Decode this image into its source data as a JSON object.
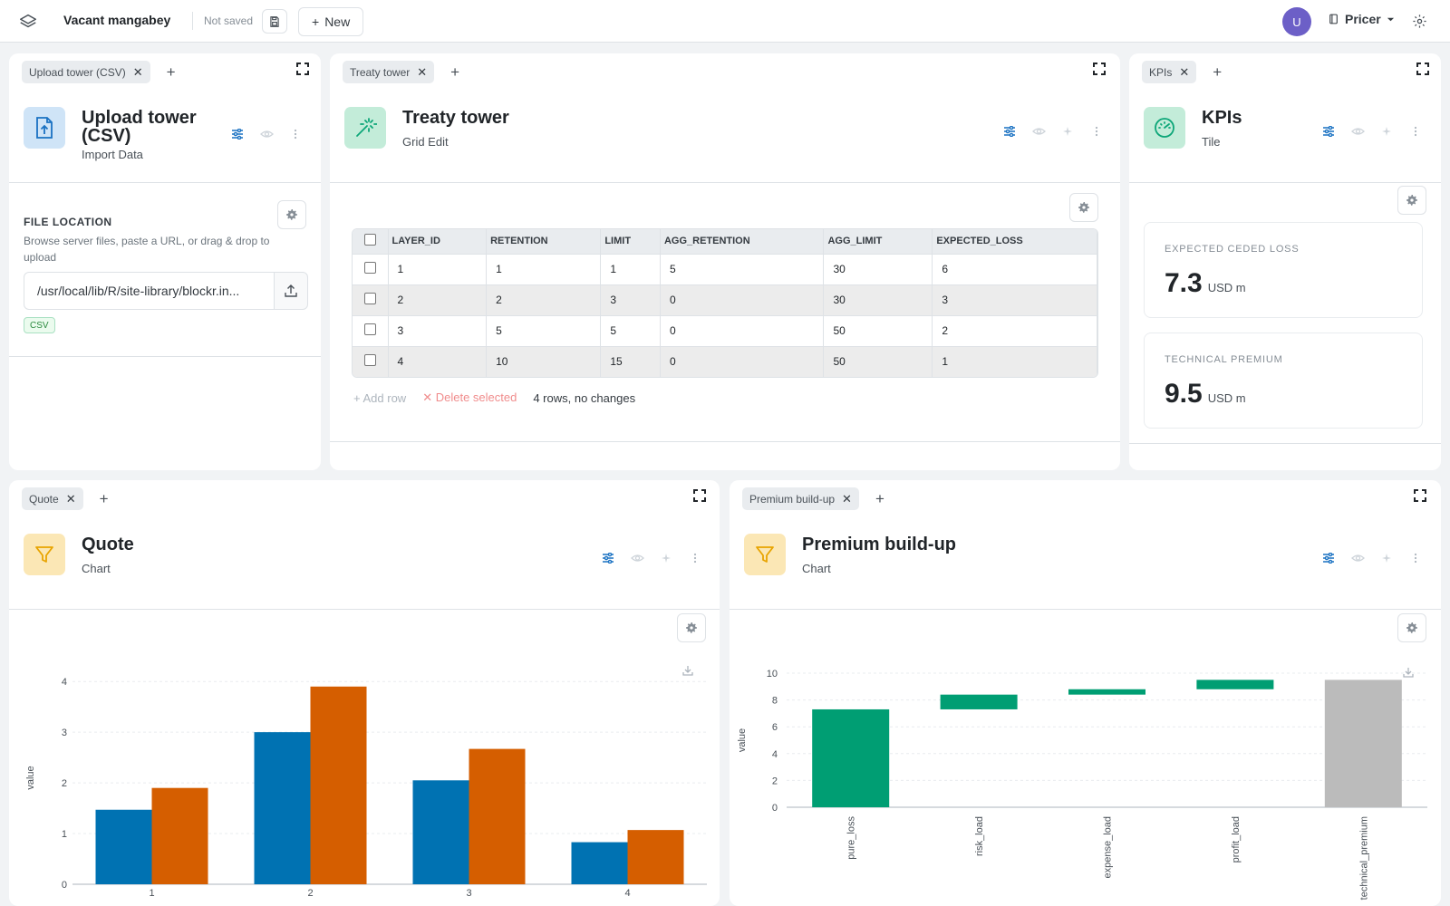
{
  "header": {
    "title": "Vacant mangabey",
    "status": "Not saved",
    "new_label": "New",
    "avatar_initial": "U",
    "workspace": "Pricer"
  },
  "upload_panel": {
    "tab": "Upload tower (CSV)",
    "title": "Upload tower (CSV)",
    "subtitle": "Import Data",
    "file_location_label": "FILE LOCATION",
    "file_location_desc": "Browse server files, paste a URL, or drag & drop to upload",
    "path_value": "/usr/local/lib/R/site-library/blockr.in...",
    "badge": "CSV"
  },
  "treaty_panel": {
    "tab": "Treaty tower",
    "title": "Treaty tower",
    "subtitle": "Grid Edit",
    "columns": [
      "LAYER_ID",
      "RETENTION",
      "LIMIT",
      "AGG_RETENTION",
      "AGG_LIMIT",
      "EXPECTED_LOSS"
    ],
    "rows": [
      [
        "1",
        "1",
        "1",
        "5",
        "30",
        "6"
      ],
      [
        "2",
        "2",
        "3",
        "0",
        "30",
        "3"
      ],
      [
        "3",
        "5",
        "5",
        "0",
        "50",
        "2"
      ],
      [
        "4",
        "10",
        "15",
        "0",
        "50",
        "1"
      ]
    ],
    "add_row": "Add row",
    "delete_selected": "Delete selected",
    "row_status": "4 rows, no changes"
  },
  "kpi_panel": {
    "tab": "KPIs",
    "title": "KPIs",
    "subtitle": "Tile",
    "tiles": [
      {
        "label": "EXPECTED CEDED LOSS",
        "value": "7.3",
        "unit": "USD m"
      },
      {
        "label": "TECHNICAL PREMIUM",
        "value": "9.5",
        "unit": "USD m"
      }
    ]
  },
  "quote_panel": {
    "tab": "Quote",
    "title": "Quote",
    "subtitle": "Chart"
  },
  "premium_panel": {
    "tab": "Premium build-up",
    "title": "Premium build-up",
    "subtitle": "Chart"
  },
  "chart_data": [
    {
      "type": "bar",
      "title": "",
      "xlabel": "",
      "ylabel": "value",
      "categories": [
        "1",
        "2",
        "3",
        "4"
      ],
      "series": [
        {
          "values": [
            1.47,
            3.0,
            2.05,
            0.83
          ],
          "color": "#0072b2"
        },
        {
          "values": [
            1.9,
            3.9,
            2.67,
            1.07
          ],
          "color": "#d55e00"
        }
      ],
      "ylim": [
        0,
        4.2
      ],
      "yticks": [
        0,
        1,
        2,
        3,
        4
      ],
      "grid": true
    },
    {
      "type": "bar",
      "subtype": "waterfall",
      "title": "",
      "xlabel": "",
      "ylabel": "value",
      "categories": [
        "pure_loss",
        "risk_load",
        "expense_load",
        "profit_load",
        "technical_premium"
      ],
      "bars": [
        {
          "start": 0,
          "end": 7.3,
          "color": "#009e73"
        },
        {
          "start": 7.3,
          "end": 8.4,
          "color": "#009e73"
        },
        {
          "start": 8.4,
          "end": 8.8,
          "color": "#009e73"
        },
        {
          "start": 8.8,
          "end": 9.5,
          "color": "#009e73"
        },
        {
          "start": 0,
          "end": 9.5,
          "color": "#bbbbbb"
        }
      ],
      "ylim": [
        0,
        10.5
      ],
      "yticks": [
        0,
        2,
        4,
        6,
        8,
        10
      ],
      "grid": true
    }
  ]
}
